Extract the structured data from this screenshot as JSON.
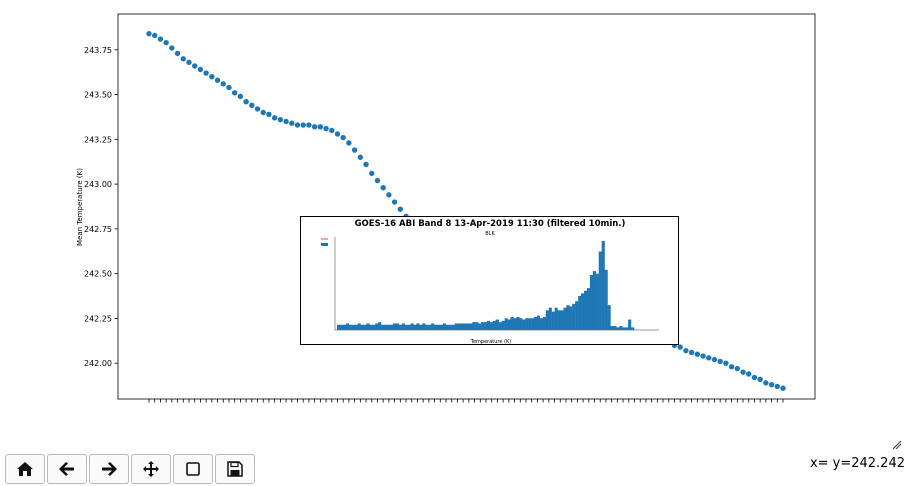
{
  "chart_data": [
    {
      "type": "scatter",
      "title": "",
      "xlabel": "",
      "ylabel": "Mean Temperature (K)",
      "ylim": [
        241.8,
        243.95
      ],
      "yticks": [
        "242.00",
        "242.25",
        "242.50",
        "242.75",
        "243.00",
        "243.25",
        "243.50",
        "243.75"
      ],
      "color": "#1f77b4",
      "x_count": 111,
      "grid": false,
      "y": [
        243.84,
        243.83,
        243.81,
        243.79,
        243.76,
        243.73,
        243.7,
        243.68,
        243.66,
        243.64,
        243.62,
        243.6,
        243.58,
        243.56,
        243.54,
        243.51,
        243.49,
        243.46,
        243.44,
        243.42,
        243.4,
        243.39,
        243.37,
        243.36,
        243.35,
        243.34,
        243.33,
        243.33,
        243.33,
        243.32,
        243.32,
        243.31,
        243.3,
        243.28,
        243.26,
        243.23,
        243.19,
        243.15,
        243.11,
        243.06,
        243.02,
        242.98,
        242.94,
        242.9,
        242.86,
        242.82,
        242.78,
        242.75,
        242.72,
        242.69,
        242.66,
        242.63,
        242.6,
        242.58,
        242.56,
        242.54,
        242.52,
        242.5,
        242.48,
        242.47,
        242.45,
        242.44,
        242.43,
        242.41,
        242.4,
        242.39,
        242.38,
        242.37,
        242.36,
        242.35,
        242.34,
        242.33,
        242.32,
        242.31,
        242.3,
        242.29,
        242.28,
        242.27,
        242.26,
        242.25,
        242.24,
        242.23,
        242.22,
        242.21,
        242.2,
        242.19,
        242.18,
        242.17,
        242.16,
        242.15,
        242.14,
        242.12,
        242.1,
        242.09,
        242.07,
        242.06,
        242.05,
        242.04,
        242.03,
        242.02,
        242.01,
        242.0,
        241.98,
        241.97,
        241.95,
        241.94,
        241.92,
        241.91,
        241.89,
        241.88,
        241.87,
        241.86
      ]
    },
    {
      "type": "bar",
      "title": "GOES-16 ABI Band 8 13-Apr-2019 11:30 (filtered 10min.)",
      "subtitle": "BLK",
      "xlabel": "Temperature (K)",
      "color": "#1f77b4",
      "values": [
        0.04,
        0.04,
        0.04,
        0.05,
        0.04,
        0.04,
        0.04,
        0.05,
        0.04,
        0.04,
        0.05,
        0.04,
        0.04,
        0.05,
        0.06,
        0.04,
        0.04,
        0.04,
        0.04,
        0.05,
        0.05,
        0.04,
        0.05,
        0.04,
        0.04,
        0.05,
        0.04,
        0.05,
        0.04,
        0.05,
        0.04,
        0.04,
        0.05,
        0.04,
        0.04,
        0.04,
        0.05,
        0.04,
        0.04,
        0.04,
        0.05,
        0.05,
        0.05,
        0.05,
        0.05,
        0.05,
        0.06,
        0.06,
        0.05,
        0.06,
        0.06,
        0.07,
        0.06,
        0.07,
        0.08,
        0.06,
        0.07,
        0.09,
        0.08,
        0.1,
        0.09,
        0.1,
        0.09,
        0.08,
        0.09,
        0.09,
        0.09,
        0.1,
        0.11,
        0.09,
        0.1,
        0.15,
        0.17,
        0.14,
        0.17,
        0.15,
        0.15,
        0.17,
        0.19,
        0.18,
        0.2,
        0.22,
        0.26,
        0.28,
        0.3,
        0.32,
        0.42,
        0.45,
        0.43,
        0.6,
        0.68,
        0.46,
        0.19,
        0.03,
        0.03,
        0.02,
        0.03,
        0.02,
        0.02,
        0.08,
        0.02
      ]
    }
  ],
  "toolbar": {
    "buttons": [
      {
        "name": "home-button",
        "icon": "home-icon"
      },
      {
        "name": "back-button",
        "icon": "arrow-left-icon"
      },
      {
        "name": "forward-button",
        "icon": "arrow-right-icon"
      },
      {
        "name": "pan-button",
        "icon": "move-icon"
      },
      {
        "name": "zoom-button",
        "icon": "square-icon"
      },
      {
        "name": "save-button",
        "icon": "save-icon"
      }
    ]
  },
  "status": {
    "coordinates": "x= y=242.242"
  }
}
